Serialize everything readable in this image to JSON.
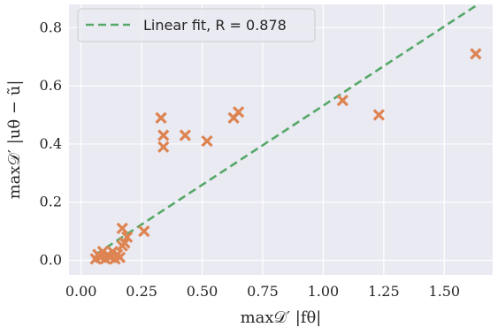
{
  "chart_data": {
    "type": "scatter",
    "xlabel": "max𝒟′ |fθ|",
    "ylabel": "max𝒟′ |uθ − ũ|",
    "xlim": [
      -0.05,
      1.7
    ],
    "ylim": [
      -0.05,
      0.88
    ],
    "xticks": [
      0.0,
      0.25,
      0.5,
      0.75,
      1.0,
      1.25,
      1.5
    ],
    "xtick_labels": [
      "0.00",
      "0.25",
      "0.50",
      "0.75",
      "1.00",
      "1.25",
      "1.50"
    ],
    "yticks": [
      0.0,
      0.2,
      0.4,
      0.6,
      0.8
    ],
    "ytick_labels": [
      "0.0",
      "0.2",
      "0.4",
      "0.6",
      "0.8"
    ],
    "grid": true,
    "legend_position": "top-left",
    "legend_label": "Linear fit, R = 0.878",
    "background_color": "#eaeaf2",
    "grid_color": "#ffffff",
    "marker_color": "#dd8452",
    "fit_color": "#55a868",
    "points": [
      {
        "x": 0.06,
        "y": 0.005
      },
      {
        "x": 0.07,
        "y": 0.02
      },
      {
        "x": 0.08,
        "y": 0.01
      },
      {
        "x": 0.09,
        "y": 0.03
      },
      {
        "x": 0.1,
        "y": 0.005
      },
      {
        "x": 0.11,
        "y": 0.02
      },
      {
        "x": 0.12,
        "y": 0.01
      },
      {
        "x": 0.13,
        "y": 0.03
      },
      {
        "x": 0.14,
        "y": 0.005
      },
      {
        "x": 0.15,
        "y": 0.02
      },
      {
        "x": 0.16,
        "y": 0.01
      },
      {
        "x": 0.17,
        "y": 0.05
      },
      {
        "x": 0.17,
        "y": 0.11
      },
      {
        "x": 0.18,
        "y": 0.06
      },
      {
        "x": 0.19,
        "y": 0.08
      },
      {
        "x": 0.26,
        "y": 0.1
      },
      {
        "x": 0.33,
        "y": 0.49
      },
      {
        "x": 0.34,
        "y": 0.43
      },
      {
        "x": 0.34,
        "y": 0.39
      },
      {
        "x": 0.43,
        "y": 0.43
      },
      {
        "x": 0.52,
        "y": 0.41
      },
      {
        "x": 0.63,
        "y": 0.49
      },
      {
        "x": 0.65,
        "y": 0.51
      },
      {
        "x": 1.08,
        "y": 0.55
      },
      {
        "x": 1.23,
        "y": 0.5
      },
      {
        "x": 1.63,
        "y": 0.71
      }
    ],
    "fit_line": {
      "x": [
        0.06,
        1.63
      ],
      "y": [
        0.02,
        0.875
      ]
    }
  }
}
